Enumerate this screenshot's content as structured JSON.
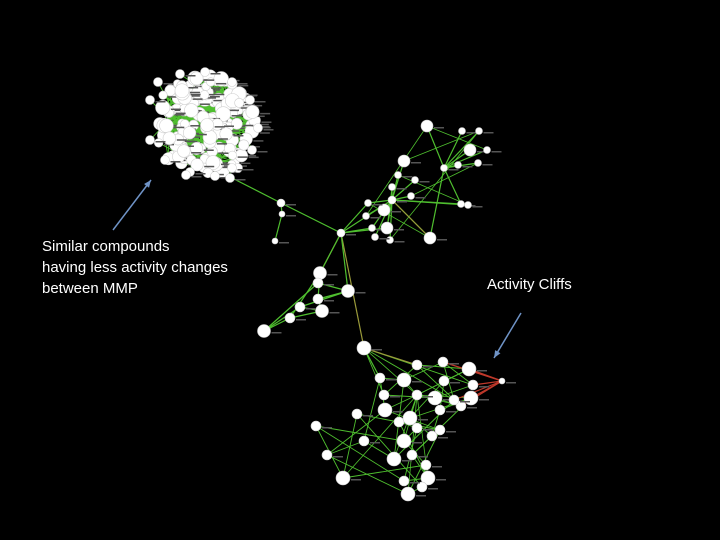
{
  "annotations": {
    "left": {
      "lines": [
        "Similar compounds",
        "having less activity changes",
        "between MMP"
      ]
    },
    "right": {
      "text": "Activity Cliffs"
    }
  },
  "colors": {
    "background": "#000000",
    "node_fill": "#ffffff",
    "edge_similar": "#4fbf2f",
    "edge_olive": "#9a9a3a",
    "edge_cliff": "#c0392b",
    "arrow": "#6f93c6",
    "text": "#ffffff"
  }
}
